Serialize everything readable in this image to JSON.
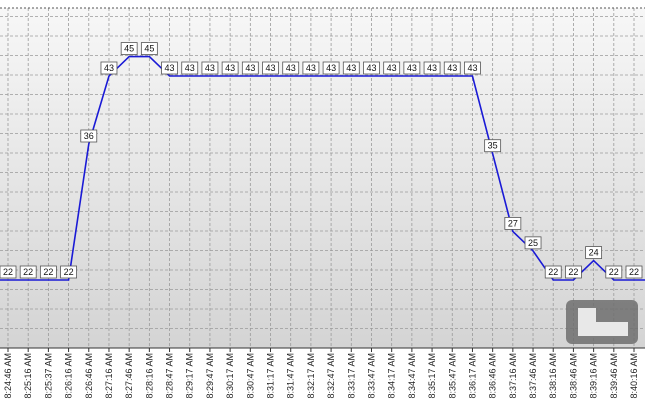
{
  "chart_data": {
    "type": "line",
    "categories": [
      "8:24:46 AM",
      "8:25:16 AM",
      "8:25:37 AM",
      "8:26:16 AM",
      "8:26:46 AM",
      "8:27:16 AM",
      "8:27:46 AM",
      "8:28:16 AM",
      "8:28:47 AM",
      "8:29:17 AM",
      "8:29:47 AM",
      "8:30:17 AM",
      "8:30:47 AM",
      "8:31:17 AM",
      "8:31:47 AM",
      "8:32:17 AM",
      "8:32:47 AM",
      "8:33:17 AM",
      "8:33:47 AM",
      "8:34:17 AM",
      "8:34:47 AM",
      "8:35:17 AM",
      "8:35:47 AM",
      "8:36:17 AM",
      "8:36:46 AM",
      "8:37:16 AM",
      "8:37:46 AM",
      "8:38:16 AM",
      "8:38:46 AM",
      "8:39:16 AM",
      "8:39:46 AM",
      "8:40:16 AM"
    ],
    "values": [
      22,
      22,
      22,
      22,
      36,
      43,
      45,
      45,
      43,
      43,
      43,
      43,
      43,
      43,
      43,
      43,
      43,
      43,
      43,
      43,
      43,
      43,
      43,
      43,
      35,
      27,
      25,
      22,
      22,
      24,
      22,
      22
    ],
    "color": "#1a1ad6",
    "ylim": [
      15,
      50
    ],
    "grid": true
  }
}
